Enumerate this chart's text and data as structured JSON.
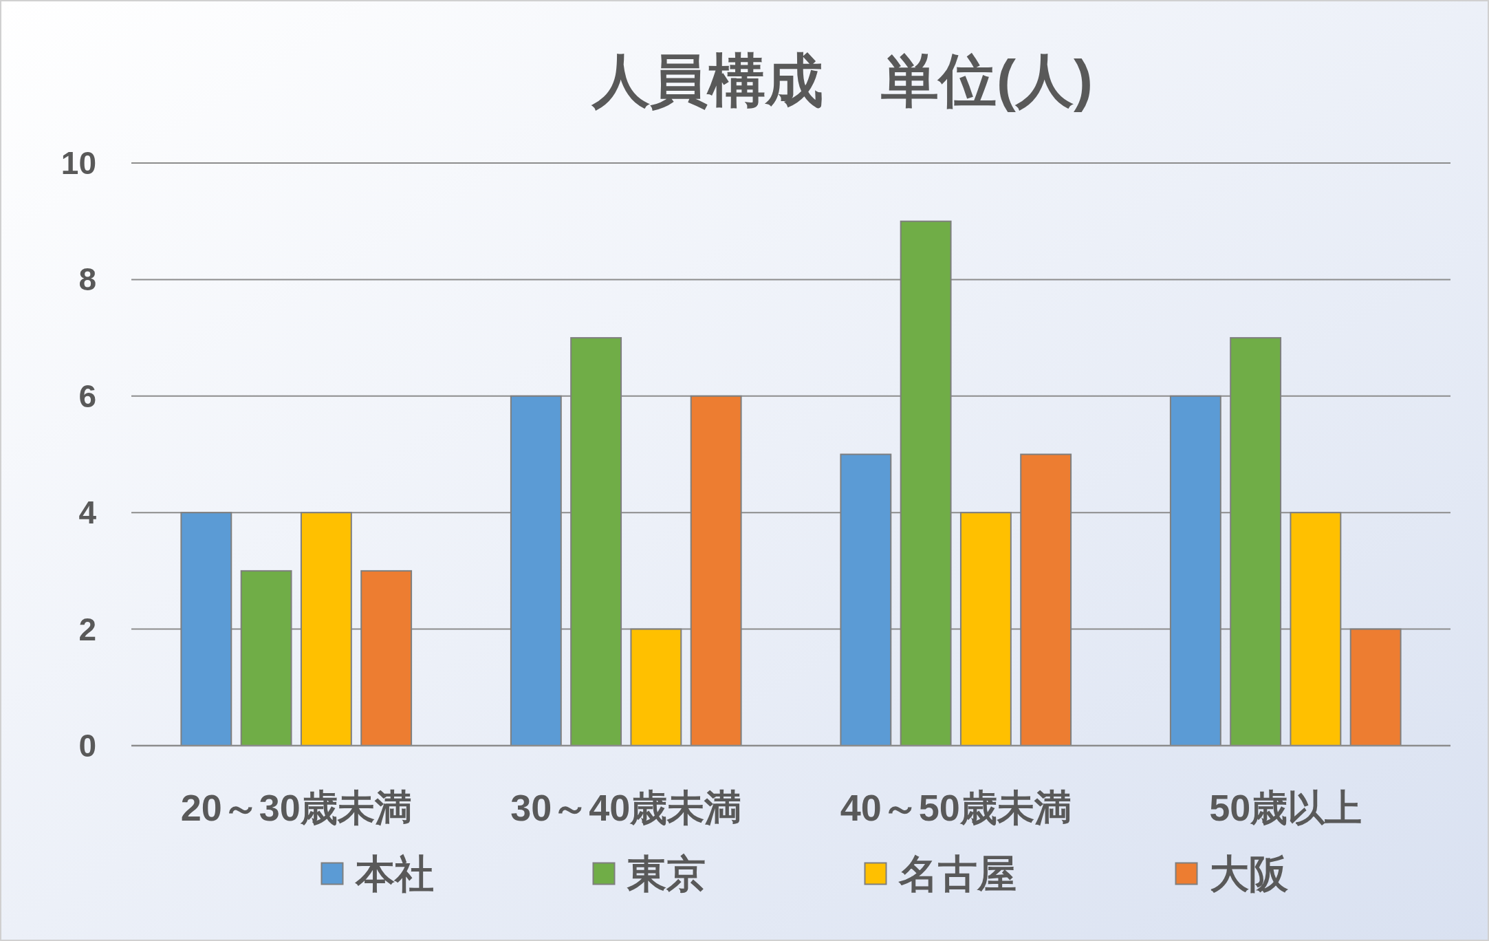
{
  "chart_data": {
    "type": "bar",
    "title": "人員構成　単位(人)",
    "categories": [
      "20～30歳未満",
      "30～40歳未満",
      "40～50歳未満",
      "50歳以上"
    ],
    "series": [
      {
        "name": "本社",
        "color": "#5b9bd5",
        "values": [
          4,
          6,
          5,
          6
        ]
      },
      {
        "name": "東京",
        "color": "#70ad47",
        "values": [
          3,
          7,
          9,
          7
        ]
      },
      {
        "name": "名古屋",
        "color": "#ffc000",
        "values": [
          4,
          2,
          4,
          4
        ]
      },
      {
        "name": "大阪",
        "color": "#ed7d31",
        "values": [
          3,
          6,
          5,
          2
        ]
      }
    ],
    "ylim": [
      0,
      10
    ],
    "yticks": [
      0,
      2,
      4,
      6,
      8,
      10
    ],
    "grid": "y",
    "legend": "bottom"
  }
}
